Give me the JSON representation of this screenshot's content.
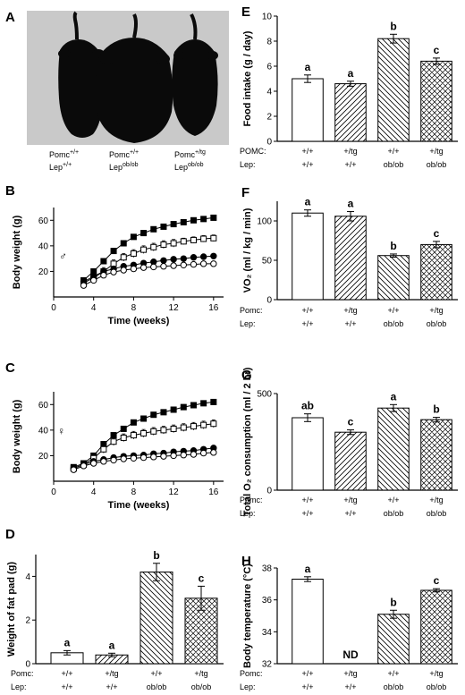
{
  "panels": {
    "A": {
      "letter": "A",
      "caption_top": [
        "Pomc",
        "Pomc",
        "Pomc"
      ],
      "caption_top_sup": [
        "+/+",
        "+/+",
        "+/tg"
      ],
      "caption_bottom": [
        "Lep",
        "Lep",
        "Lep"
      ],
      "caption_bottom_sup": [
        "+/+",
        "ob/ob",
        "ob/ob"
      ]
    }
  },
  "colors": {
    "photo_bg": "#c9c9c9",
    "mouse": "#0a0a0a",
    "ink": "#000000",
    "bar_open": "#ffffff"
  },
  "chart_data": [
    {
      "id": "B",
      "letter": "B",
      "type": "line",
      "ylabel": "Body weight (g)",
      "xlabel": "Time (weeks)",
      "xlim": [
        0,
        17
      ],
      "ylim": [
        0,
        70
      ],
      "xticks": [
        0,
        4,
        8,
        12,
        16
      ],
      "yticks": [
        20,
        40,
        60
      ],
      "symbol_label": "♂",
      "x": [
        3,
        4,
        5,
        6,
        7,
        8,
        9,
        10,
        11,
        12,
        13,
        14,
        15,
        16
      ],
      "series": [
        {
          "marker": "filled-square",
          "values": [
            13,
            20,
            28,
            36,
            42,
            47,
            50,
            53,
            55,
            57,
            58.5,
            60,
            61,
            62
          ],
          "err": [
            2,
            2,
            2,
            2,
            2,
            2,
            1.5,
            1.5,
            1.5,
            1.5,
            1.5,
            1.5,
            1.5,
            1.5
          ]
        },
        {
          "marker": "open-square",
          "values": [
            11,
            15,
            20,
            26,
            31,
            34,
            37,
            39,
            41,
            42,
            43.5,
            44.5,
            45.5,
            46
          ],
          "err": [
            3,
            3,
            3,
            3,
            3,
            3,
            3,
            3,
            3,
            3,
            2.5,
            2.5,
            2.5,
            2.5
          ]
        },
        {
          "marker": "filled-circle",
          "values": [
            12,
            16,
            20,
            22,
            24,
            25,
            26.5,
            27.5,
            28.5,
            29.5,
            30,
            31,
            31.5,
            32
          ],
          "err": [
            1.5,
            1.5,
            1.5,
            1.5,
            1.5,
            1.5,
            1.5,
            1.5,
            1.5,
            1.5,
            1.5,
            1.5,
            1.5,
            1.5
          ]
        },
        {
          "marker": "open-circle",
          "values": [
            9,
            13,
            17,
            19.5,
            21,
            22,
            23,
            23.5,
            24,
            24.5,
            25,
            25.5,
            26,
            26
          ],
          "err": [
            1.5,
            1.5,
            1.5,
            1.5,
            1.5,
            1.5,
            1.5,
            1.5,
            1.5,
            1.5,
            1.5,
            1.5,
            1.5,
            1.5
          ]
        }
      ]
    },
    {
      "id": "C",
      "letter": "C",
      "type": "line",
      "ylabel": "Body weight (g)",
      "xlabel": "Time (weeks)",
      "xlim": [
        0,
        17
      ],
      "ylim": [
        0,
        70
      ],
      "xticks": [
        0,
        4,
        8,
        12,
        16
      ],
      "yticks": [
        20,
        40,
        60
      ],
      "symbol_label": "♀",
      "x": [
        2,
        3,
        4,
        5,
        6,
        7,
        8,
        9,
        10,
        11,
        12,
        13,
        14,
        15,
        16
      ],
      "series": [
        {
          "marker": "filled-square",
          "values": [
            11,
            14,
            20,
            29,
            36,
            41,
            46,
            49,
            52,
            54,
            56,
            58,
            59.5,
            61,
            62
          ],
          "err": [
            2,
            2,
            2,
            2,
            2,
            2,
            2,
            2,
            2,
            2,
            2,
            2,
            2,
            2,
            2
          ]
        },
        {
          "marker": "open-square",
          "values": [
            10,
            13,
            18,
            25,
            31,
            34,
            36,
            37.5,
            39,
            40,
            41,
            42,
            43,
            44,
            45
          ],
          "err": [
            3,
            3,
            3,
            3,
            3,
            3,
            3,
            3,
            3,
            3,
            3,
            3,
            3,
            3,
            3
          ]
        },
        {
          "marker": "filled-circle",
          "values": [
            10,
            13,
            15.5,
            17,
            18.5,
            19.5,
            20,
            20.5,
            21.5,
            22,
            23,
            23.5,
            24,
            25,
            26
          ],
          "err": [
            1.5,
            1.5,
            1.5,
            1.5,
            1.5,
            1.5,
            1.5,
            1.5,
            1.5,
            1.5,
            1.5,
            1.5,
            1.5,
            1.5,
            1.5
          ]
        },
        {
          "marker": "open-circle",
          "values": [
            9,
            12,
            14,
            15.5,
            16.5,
            17.5,
            18,
            18.5,
            19,
            19.5,
            20,
            20.5,
            21,
            22,
            22.5
          ],
          "err": [
            1.5,
            1.5,
            1.5,
            1.5,
            1.5,
            1.5,
            1.5,
            1.5,
            1.5,
            1.5,
            1.5,
            1.5,
            1.5,
            1.5,
            1.5
          ]
        }
      ]
    },
    {
      "id": "D",
      "letter": "D",
      "type": "bar",
      "ylabel": "Weight of fat pad (g)",
      "ylim": [
        0,
        5
      ],
      "yticks": [
        0,
        2,
        4
      ],
      "row1_label": "Pomc:",
      "row2_label": "Lep:",
      "row1": [
        "+/+",
        "+/tg",
        "+/+",
        "+/tg"
      ],
      "row2": [
        "+/+",
        "+/+",
        "ob/ob",
        "ob/ob"
      ],
      "values": [
        0.5,
        0.4,
        4.2,
        3.0
      ],
      "err": [
        0.1,
        0.08,
        0.4,
        0.55
      ],
      "letters": [
        "a",
        "a",
        "b",
        "c"
      ],
      "patterns": [
        "open",
        "hatch-right",
        "hatch-left",
        "crosshatch"
      ]
    },
    {
      "id": "E",
      "letter": "E",
      "type": "bar",
      "ylabel": "Food intake (g / day)",
      "ylim": [
        0,
        10
      ],
      "yticks": [
        0,
        2,
        4,
        6,
        8,
        10
      ],
      "row1_label": "POMC:",
      "row2_label": "Lep:",
      "row1": [
        "+/+",
        "+/tg",
        "+/+",
        "+/tg"
      ],
      "row2": [
        "+/+",
        "+/+",
        "ob/ob",
        "ob/ob"
      ],
      "values": [
        5.0,
        4.6,
        8.2,
        6.4
      ],
      "err": [
        0.3,
        0.2,
        0.35,
        0.25
      ],
      "letters": [
        "a",
        "a",
        "b",
        "c"
      ],
      "patterns": [
        "open",
        "hatch-right",
        "hatch-left",
        "crosshatch"
      ]
    },
    {
      "id": "F",
      "letter": "F",
      "type": "bar",
      "ylabel": "VO₂ (ml / kg / min)",
      "ylim": [
        0,
        125
      ],
      "yticks": [
        0,
        50,
        100
      ],
      "row1_label": "Pomc:",
      "row2_label": "Lep:",
      "row1": [
        "+/+",
        "+/tg",
        "+/+",
        "+/tg"
      ],
      "row2": [
        "+/+",
        "+/+",
        "ob/ob",
        "ob/ob"
      ],
      "values": [
        110,
        106,
        56,
        70
      ],
      "err": [
        4,
        6,
        2,
        4
      ],
      "letters": [
        "a",
        "a",
        "b",
        "c"
      ],
      "patterns": [
        "open",
        "hatch-right",
        "hatch-left",
        "crosshatch"
      ]
    },
    {
      "id": "G",
      "letter": "G",
      "type": "bar",
      "ylabel": "Total O₂ consumption (ml / 2 hr)",
      "ylim": [
        0,
        500
      ],
      "yticks": [
        0,
        500
      ],
      "row1_label": "Pomc:",
      "row2_label": "Lep:",
      "row1": [
        "+/+",
        "+/tg",
        "+/+",
        "+/tg"
      ],
      "row2": [
        "+/+",
        "+/+",
        "ob/ob",
        "ob/ob"
      ],
      "values": [
        375,
        300,
        425,
        365
      ],
      "err": [
        20,
        12,
        18,
        12
      ],
      "letters": [
        "ab",
        "c",
        "a",
        "b"
      ],
      "patterns": [
        "open",
        "hatch-right",
        "hatch-left",
        "crosshatch"
      ]
    },
    {
      "id": "H",
      "letter": "H",
      "type": "bar",
      "ylabel": "Body temperature (°C)",
      "ylim": [
        32,
        38
      ],
      "yticks": [
        32,
        34,
        36,
        38
      ],
      "row1_label": "Pomc:",
      "row2_label": "Lep:",
      "row1": [
        "+/+",
        "+/tg",
        "+/+",
        "+/tg"
      ],
      "row2": [
        "+/+",
        "+/+",
        "ob/ob",
        "ob/ob"
      ],
      "values": [
        37.3,
        null,
        35.1,
        36.6
      ],
      "err": [
        0.15,
        null,
        0.25,
        0.1
      ],
      "letters": [
        "a",
        "ND",
        "b",
        "c"
      ],
      "patterns": [
        "open",
        "none",
        "hatch-left",
        "crosshatch"
      ]
    }
  ]
}
